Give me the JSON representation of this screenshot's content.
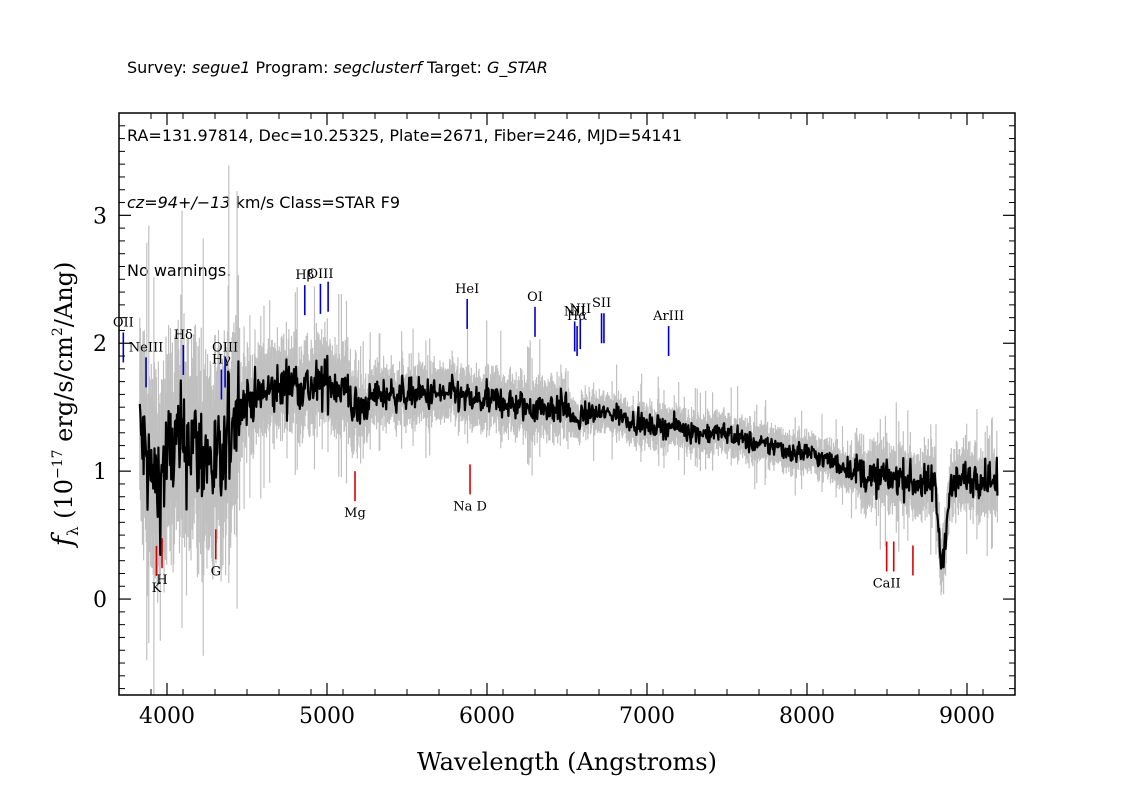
{
  "header": {
    "line1": {
      "survey_key": "Survey: ",
      "survey": "segue1",
      "program_key": " Program: ",
      "program": "segclusterf",
      "target_key": " Target: ",
      "target": "G_STAR"
    },
    "line2": "RA=131.97814, Dec=10.25325, Plate=2671, Fiber=246, MJD=54141",
    "line3": {
      "cz": "cz=94+/−13",
      "rest": " km/s Class=STAR F9"
    },
    "line4": "No warnings."
  },
  "chart_data": {
    "type": "line",
    "title": "",
    "xlabel": "Wavelength (Angstroms)",
    "ylabel_parts": {
      "f": "f",
      "sub": "λ",
      "pre": " (10",
      "exp1": "−17",
      "mid": " erg/s/cm",
      "exp2": "2",
      "post": "/Ang)"
    },
    "xlim": [
      3700,
      9300
    ],
    "ylim": [
      -0.75,
      3.8
    ],
    "xticks": [
      4000,
      5000,
      6000,
      7000,
      8000,
      9000
    ],
    "xtick_labels": [
      "4000",
      "5000",
      "6000",
      "7000",
      "8000",
      "9000"
    ],
    "yticks": [
      0,
      1,
      2,
      3
    ],
    "ytick_labels": [
      "0",
      "1",
      "2",
      "3"
    ],
    "grid": false,
    "colors": {
      "spectrum": "#000000",
      "error_band": "#c0c0c0",
      "emission": "#0000cc",
      "absorption": "#e00000"
    },
    "series": [
      {
        "name": "flux",
        "x": [
          3830,
          3860,
          3900,
          3950,
          4000,
          4050,
          4100,
          4150,
          4200,
          4250,
          4300,
          4350,
          4400,
          4450,
          4500,
          4600,
          4700,
          4800,
          4900,
          5000,
          5100,
          5200,
          5300,
          5400,
          5500,
          5580,
          5700,
          5800,
          5900,
          6000,
          6100,
          6200,
          6300,
          6400,
          6500,
          6563,
          6600,
          6700,
          6800,
          6900,
          7000,
          7100,
          7200,
          7300,
          7400,
          7500,
          7600,
          7700,
          7800,
          7900,
          8000,
          8100,
          8200,
          8300,
          8400,
          8500,
          8600,
          8700,
          8800,
          8840,
          8900,
          9000,
          9100,
          9190
        ],
        "y": [
          1.3,
          1.15,
          0.95,
          0.9,
          1.1,
          1.2,
          1.2,
          1.25,
          1.15,
          1.1,
          1.05,
          1.0,
          1.4,
          1.5,
          1.55,
          1.6,
          1.65,
          1.7,
          1.65,
          1.7,
          1.65,
          1.45,
          1.6,
          1.6,
          1.6,
          1.6,
          1.6,
          1.6,
          1.55,
          1.55,
          1.55,
          1.5,
          1.5,
          1.5,
          1.5,
          1.35,
          1.45,
          1.45,
          1.45,
          1.4,
          1.35,
          1.35,
          1.35,
          1.3,
          1.3,
          1.3,
          1.25,
          1.2,
          1.2,
          1.15,
          1.15,
          1.1,
          1.05,
          1.0,
          0.95,
          0.95,
          0.95,
          0.9,
          0.9,
          0.25,
          0.9,
          0.95,
          0.95,
          0.9
        ]
      }
    ],
    "emission_lines": [
      {
        "label": "OII",
        "wave": 3727
      },
      {
        "label": "NeIII",
        "wave": 3869
      },
      {
        "label": "Hδ",
        "wave": 4102
      },
      {
        "label": "Hγ",
        "wave": 4340
      },
      {
        "label": "OIII",
        "wave": 4363
      },
      {
        "label": "Hβ",
        "wave": 4861
      },
      {
        "label": "OIII",
        "wave": 4959
      },
      {
        "label": "OIII",
        "wave": 5007
      },
      {
        "label": "HeI",
        "wave": 5876
      },
      {
        "label": "OI",
        "wave": 6300
      },
      {
        "label": "NII",
        "wave": 6548
      },
      {
        "label": "Hα",
        "wave": 6563
      },
      {
        "label": "NII",
        "wave": 6583
      },
      {
        "label": "SII",
        "wave": 6716
      },
      {
        "label": "SII",
        "wave": 6731
      },
      {
        "label": "ArIII",
        "wave": 7135
      }
    ],
    "absorption_lines": [
      {
        "label": "K",
        "wave": 3934
      },
      {
        "label": "H",
        "wave": 3969
      },
      {
        "label": "G",
        "wave": 4305
      },
      {
        "label": "Mg",
        "wave": 5175
      },
      {
        "label": "Na D",
        "wave": 5894
      },
      {
        "label": "CaII",
        "wave": 8498
      },
      {
        "label": "CaII",
        "wave": 8542
      },
      {
        "label": "CaII",
        "wave": 8662
      }
    ]
  }
}
